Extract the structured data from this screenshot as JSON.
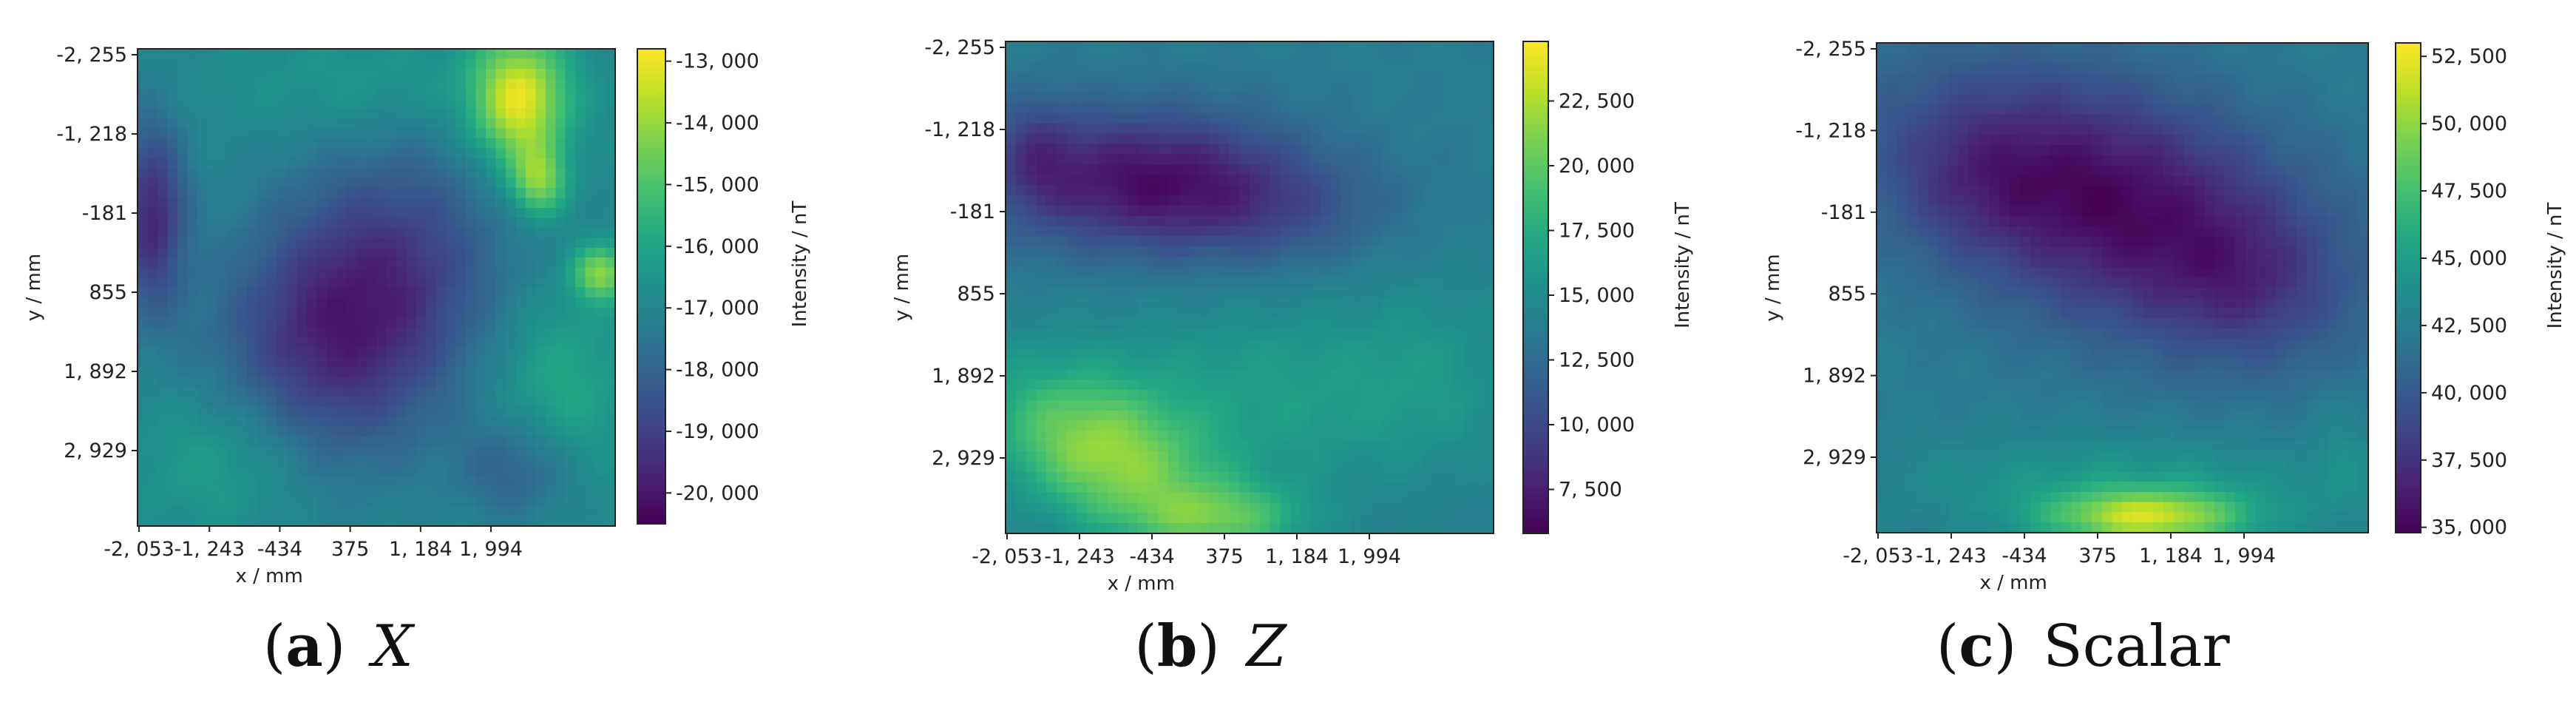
{
  "chart_data": [
    {
      "type": "heatmap",
      "caption": {
        "letter": "a",
        "label": "X",
        "italic": true
      },
      "xlabel": "x / mm",
      "ylabel": "y / mm",
      "xticks": [
        "-2, 053",
        "-1, 243",
        "-434",
        "375",
        "1, 184",
        "1, 994"
      ],
      "yticks": [
        "-2, 255",
        "-1, 218",
        "-181",
        "855",
        "1, 892",
        "2, 929"
      ],
      "colorbar": {
        "label": "Intensity / nT",
        "min": -20500,
        "max": -12800,
        "ticks": [
          -20000,
          -19000,
          -18000,
          -17000,
          -16000,
          -15000,
          -14000,
          -13000
        ],
        "tick_labels": [
          "-20, 000",
          "-19, 000",
          "-18, 000",
          "-17, 000",
          "-16, 000",
          "-15, 000",
          "-14, 000",
          "-13, 000"
        ]
      },
      "base": 0.47,
      "features": [
        {
          "x": 0.45,
          "y": 0.56,
          "a": -0.42,
          "sx": 0.17,
          "sy": 0.24,
          "rot": 0.6
        },
        {
          "x": 0.8,
          "y": 0.11,
          "a": 0.5,
          "sx": 0.07,
          "sy": 0.1,
          "rot": 0
        },
        {
          "x": 0.84,
          "y": 0.28,
          "a": 0.32,
          "sx": 0.04,
          "sy": 0.05,
          "rot": 0
        },
        {
          "x": 0.97,
          "y": 0.47,
          "a": 0.35,
          "sx": 0.04,
          "sy": 0.04,
          "rot": 0
        },
        {
          "x": 0.03,
          "y": 0.35,
          "a": -0.35,
          "sx": 0.05,
          "sy": 0.14,
          "rot": 0
        },
        {
          "x": 0.2,
          "y": 0.85,
          "a": 0.16,
          "sx": 0.14,
          "sy": 0.12,
          "rot": 0
        },
        {
          "x": 0.8,
          "y": 0.88,
          "a": -0.18,
          "sx": 0.09,
          "sy": 0.08,
          "rot": 0
        },
        {
          "x": 0.88,
          "y": 0.72,
          "a": 0.14,
          "sx": 0.1,
          "sy": 0.15,
          "rot": 0
        },
        {
          "x": 0.5,
          "y": 0.08,
          "a": 0.08,
          "sx": 0.2,
          "sy": 0.08,
          "rot": 0
        }
      ]
    },
    {
      "type": "heatmap",
      "caption": {
        "letter": "b",
        "label": "Z",
        "italic": true
      },
      "xlabel": "x / mm",
      "ylabel": "y / mm",
      "xticks": [
        "-2, 053",
        "-1, 243",
        "-434",
        "375",
        "1, 184",
        "1, 994"
      ],
      "yticks": [
        "-2, 255",
        "-1, 218",
        "-181",
        "855",
        "1, 892",
        "2, 929"
      ],
      "colorbar": {
        "label": "Intensity / nT",
        "min": 5800,
        "max": 24800,
        "ticks": [
          7500,
          10000,
          12500,
          15000,
          17500,
          20000,
          22500
        ],
        "tick_labels": [
          "7, 500",
          "10, 000",
          "12, 500",
          "15, 000",
          "17, 500",
          "20, 000",
          "22, 500"
        ]
      },
      "base": 0.42,
      "features": [
        {
          "x": 0.28,
          "y": 0.28,
          "a": -0.36,
          "sx": 0.22,
          "sy": 0.1,
          "rot": 0
        },
        {
          "x": 0.06,
          "y": 0.22,
          "a": -0.12,
          "sx": 0.06,
          "sy": 0.08,
          "rot": 0
        },
        {
          "x": 0.55,
          "y": 0.35,
          "a": -0.12,
          "sx": 0.18,
          "sy": 0.08,
          "rot": 0
        },
        {
          "x": 0.2,
          "y": 0.84,
          "a": 0.38,
          "sx": 0.17,
          "sy": 0.1,
          "rot": 0.45
        },
        {
          "x": 0.45,
          "y": 0.97,
          "a": 0.25,
          "sx": 0.12,
          "sy": 0.05,
          "rot": 0
        },
        {
          "x": 0.55,
          "y": 0.72,
          "a": 0.14,
          "sx": 0.3,
          "sy": 0.14,
          "rot": 0
        },
        {
          "x": 0.88,
          "y": 0.65,
          "a": 0.05,
          "sx": 0.12,
          "sy": 0.15,
          "rot": 0
        }
      ]
    },
    {
      "type": "heatmap",
      "caption": {
        "letter": "c",
        "label": "Scalar",
        "italic": false
      },
      "xlabel": "x / mm",
      "ylabel": "y / mm",
      "xticks": [
        "-2, 053",
        "-1, 243",
        "-434",
        "375",
        "1, 184",
        "1, 994"
      ],
      "yticks": [
        "-2, 255",
        "-1, 218",
        "-181",
        "855",
        "1, 892",
        "2, 929"
      ],
      "colorbar": {
        "label": "Intensity / nT",
        "min": 34800,
        "max": 53000,
        "ticks": [
          35000,
          37500,
          40000,
          42500,
          45000,
          47500,
          50000,
          52500
        ],
        "tick_labels": [
          "35, 000",
          "37, 500",
          "40, 000",
          "42, 500",
          "45, 000",
          "47, 500",
          "50, 000",
          "52, 500"
        ]
      },
      "base": 0.42,
      "features": [
        {
          "x": 0.48,
          "y": 0.33,
          "a": -0.4,
          "sx": 0.32,
          "sy": 0.17,
          "rot": 0.35
        },
        {
          "x": 0.2,
          "y": 0.28,
          "a": -0.08,
          "sx": 0.12,
          "sy": 0.1,
          "rot": 0
        },
        {
          "x": 0.75,
          "y": 0.5,
          "a": -0.1,
          "sx": 0.12,
          "sy": 0.1,
          "rot": 0
        },
        {
          "x": 0.55,
          "y": 0.97,
          "a": 0.45,
          "sx": 0.14,
          "sy": 0.04,
          "rot": 0
        },
        {
          "x": 0.5,
          "y": 0.9,
          "a": 0.12,
          "sx": 0.3,
          "sy": 0.07,
          "rot": 0
        },
        {
          "x": 0.95,
          "y": 0.85,
          "a": 0.06,
          "sx": 0.05,
          "sy": 0.1,
          "rot": 0
        }
      ]
    }
  ]
}
